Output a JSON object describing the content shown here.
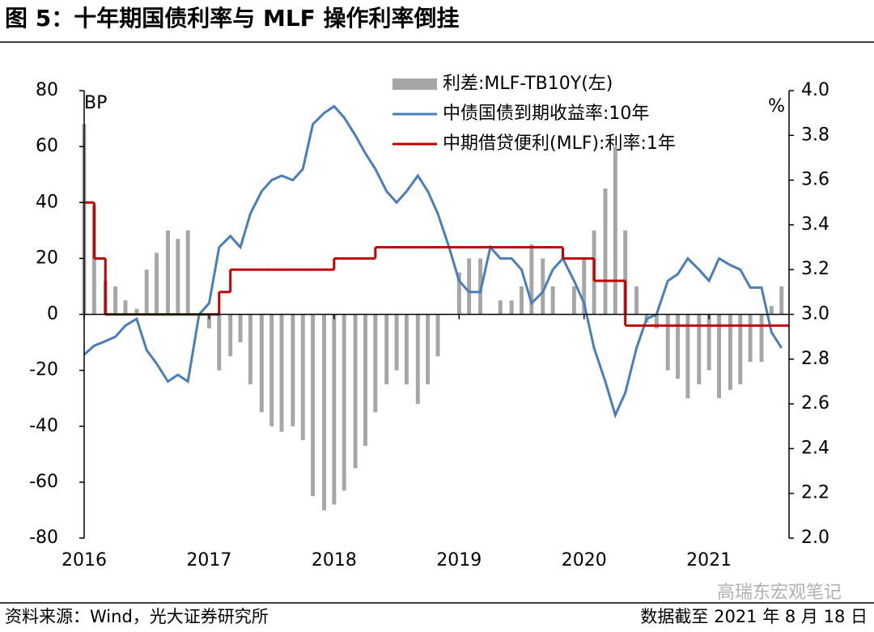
{
  "title": "图 5：十年期国债利率与 MLF 操作利率倒挂",
  "source": "资料来源：Wind，光大证券研究所",
  "date_note": "数据截至 2021 年 8 月 18 日",
  "watermark": "高瑞东宏观笔记",
  "chart_data": {
    "type": "combo",
    "x": [
      2016.0,
      2016.08,
      2016.17,
      2016.25,
      2016.33,
      2016.42,
      2016.5,
      2016.58,
      2016.67,
      2016.75,
      2016.83,
      2016.92,
      2017.0,
      2017.08,
      2017.17,
      2017.25,
      2017.33,
      2017.42,
      2017.5,
      2017.58,
      2017.67,
      2017.75,
      2017.83,
      2017.92,
      2018.0,
      2018.08,
      2018.17,
      2018.25,
      2018.33,
      2018.42,
      2018.5,
      2018.58,
      2018.67,
      2018.75,
      2018.83,
      2018.92,
      2019.0,
      2019.08,
      2019.17,
      2019.25,
      2019.33,
      2019.42,
      2019.5,
      2019.58,
      2019.67,
      2019.75,
      2019.83,
      2019.92,
      2020.0,
      2020.08,
      2020.17,
      2020.25,
      2020.33,
      2020.42,
      2020.5,
      2020.58,
      2020.67,
      2020.75,
      2020.83,
      2020.92,
      2021.0,
      2021.08,
      2021.17,
      2021.25,
      2021.33,
      2021.42,
      2021.5,
      2021.58
    ],
    "xlim": [
      2016,
      2021.64
    ],
    "xticks": [
      2016,
      2017,
      2018,
      2019,
      2020,
      2021
    ],
    "ylim": [
      -80,
      80
    ],
    "yticks": [
      80,
      60,
      40,
      20,
      0,
      -20,
      -40,
      -60,
      -80
    ],
    "y_unit": "BP",
    "y2lim": [
      2.0,
      4.0
    ],
    "y2ticks": [
      {
        "value": 4.0,
        "label": "4.0"
      },
      {
        "value": 3.8,
        "label": "3.8"
      },
      {
        "value": 3.6,
        "label": "3.6"
      },
      {
        "value": 3.4,
        "label": "3.4"
      },
      {
        "value": 3.2,
        "label": "3.2"
      },
      {
        "value": 3.0,
        "label": "3.0"
      },
      {
        "value": 2.8,
        "label": "2.8"
      },
      {
        "value": 2.6,
        "label": "2.6"
      },
      {
        "value": 2.4,
        "label": "2.4"
      },
      {
        "value": 2.2,
        "label": "2.2"
      },
      {
        "value": 2.0,
        "label": "2.0"
      }
    ],
    "y2_unit": "%",
    "legend": "top",
    "series": [
      {
        "name": "利差:MLF-TB10Y(左)",
        "type": "bar",
        "color": "#a6a6a6",
        "values": [
          68,
          39,
          12,
          10,
          5,
          2,
          16,
          22,
          30,
          27,
          30,
          0,
          -5,
          -20,
          -15,
          -10,
          -25,
          -35,
          -40,
          -42,
          -40,
          -45,
          -65,
          -70,
          -68,
          -63,
          -55,
          -47,
          -35,
          -25,
          -20,
          -25,
          -32,
          -25,
          -15,
          0,
          15,
          20,
          20,
          0,
          5,
          5,
          10,
          25,
          20,
          10,
          0,
          10,
          20,
          30,
          45,
          60,
          30,
          10,
          -3,
          -5,
          -20,
          -23,
          -30,
          -25,
          -20,
          -30,
          -27,
          -25,
          -17,
          -17,
          3,
          10
        ]
      },
      {
        "name": "中债国债到期收益率:10年",
        "type": "line",
        "axis": "y2",
        "color": "#4a7ebb",
        "values": [
          2.82,
          2.86,
          2.88,
          2.9,
          2.95,
          2.98,
          2.84,
          2.78,
          2.7,
          2.73,
          2.7,
          3.0,
          3.05,
          3.3,
          3.35,
          3.3,
          3.45,
          3.55,
          3.6,
          3.62,
          3.6,
          3.65,
          3.85,
          3.9,
          3.93,
          3.88,
          3.8,
          3.72,
          3.65,
          3.55,
          3.5,
          3.55,
          3.62,
          3.55,
          3.45,
          3.3,
          3.15,
          3.1,
          3.1,
          3.3,
          3.25,
          3.25,
          3.2,
          3.05,
          3.1,
          3.2,
          3.25,
          3.15,
          3.05,
          2.85,
          2.7,
          2.55,
          2.65,
          2.85,
          2.98,
          3.0,
          3.15,
          3.18,
          3.25,
          3.2,
          3.15,
          3.25,
          3.22,
          3.2,
          3.12,
          3.12,
          2.92,
          2.85
        ]
      },
      {
        "name": "中期借贷便利(MLF):利率:1年",
        "type": "step",
        "axis": "y2",
        "color": "#c00000",
        "values": [
          3.5,
          3.25,
          3,
          3,
          3,
          3,
          3,
          3,
          3,
          3,
          3,
          3,
          3,
          3.1,
          3.2,
          3.2,
          3.2,
          3.2,
          3.2,
          3.2,
          3.2,
          3.2,
          3.2,
          3.2,
          3.25,
          3.25,
          3.25,
          3.25,
          3.3,
          3.3,
          3.3,
          3.3,
          3.3,
          3.3,
          3.3,
          3.3,
          3.3,
          3.3,
          3.3,
          3.3,
          3.3,
          3.3,
          3.3,
          3.3,
          3.3,
          3.3,
          3.25,
          3.25,
          3.25,
          3.15,
          3.15,
          3.15,
          2.95,
          2.95,
          2.95,
          2.95,
          2.95,
          2.95,
          2.95,
          2.95,
          2.95,
          2.95,
          2.95,
          2.95,
          2.95,
          2.95,
          2.95,
          2.95
        ]
      }
    ]
  }
}
